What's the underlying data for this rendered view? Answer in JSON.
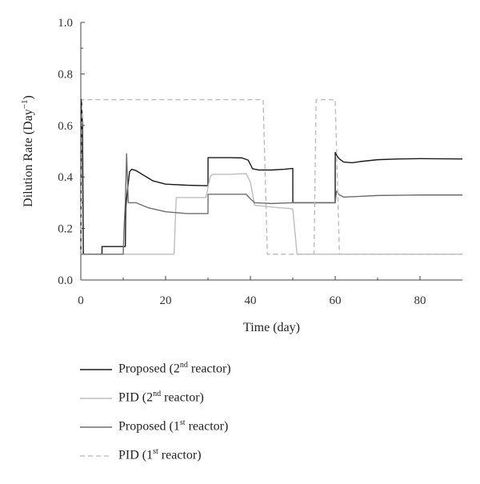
{
  "chart_data": {
    "type": "line",
    "xlabel": "Time (day)",
    "ylabel_main": "Dilution Rate (Day",
    "ylabel_sup": "−1",
    "ylabel_close": ")",
    "xlim": [
      0,
      90
    ],
    "ylim": [
      0,
      1.0
    ],
    "xticks": [
      0,
      20,
      40,
      60,
      80
    ],
    "yticks": [
      0.0,
      0.2,
      0.4,
      0.6,
      0.8,
      1.0
    ],
    "ytick_labels": [
      "0.0",
      "0.2",
      "0.4",
      "0.6",
      "0.8",
      "1.0"
    ],
    "grid": false,
    "legend_position": "below",
    "series": [
      {
        "key": "proposed_2nd",
        "label_main": "Proposed (2",
        "label_sup": "nd",
        "label_rest": " reactor)",
        "color": "#1a1a1a",
        "dash": "none",
        "width": 1.4,
        "points": [
          [
            0,
            0.1
          ],
          [
            0.15,
            0.7
          ],
          [
            0.4,
            0.6
          ],
          [
            0.6,
            0.1
          ],
          [
            5,
            0.1
          ],
          [
            5,
            0.13
          ],
          [
            10.5,
            0.13
          ],
          [
            10.6,
            0.28
          ],
          [
            11,
            0.35
          ],
          [
            11.5,
            0.42
          ],
          [
            12,
            0.43
          ],
          [
            13,
            0.425
          ],
          [
            15,
            0.405
          ],
          [
            17,
            0.385
          ],
          [
            20,
            0.372
          ],
          [
            25,
            0.368
          ],
          [
            30,
            0.366
          ],
          [
            30.01,
            0.475
          ],
          [
            35,
            0.475
          ],
          [
            38,
            0.474
          ],
          [
            39.5,
            0.465
          ],
          [
            40.5,
            0.432
          ],
          [
            42,
            0.427
          ],
          [
            45,
            0.427
          ],
          [
            48,
            0.43
          ],
          [
            50,
            0.433
          ],
          [
            50.01,
            0.3
          ],
          [
            55,
            0.3
          ],
          [
            60,
            0.3
          ],
          [
            60.01,
            0.495
          ],
          [
            60.5,
            0.48
          ],
          [
            61,
            0.47
          ],
          [
            62,
            0.458
          ],
          [
            64,
            0.455
          ],
          [
            66,
            0.46
          ],
          [
            70,
            0.467
          ],
          [
            75,
            0.47
          ],
          [
            80,
            0.471
          ],
          [
            90,
            0.47
          ]
        ]
      },
      {
        "key": "pid_2nd",
        "label_main": "PID (2",
        "label_sup": "nd",
        "label_rest": " reactor)",
        "color": "#bdbdbd",
        "dash": "none",
        "width": 1.4,
        "points": [
          [
            0,
            0.1
          ],
          [
            22,
            0.1
          ],
          [
            22.5,
            0.32
          ],
          [
            25,
            0.32
          ],
          [
            29.5,
            0.32
          ],
          [
            30.5,
            0.4
          ],
          [
            31,
            0.41
          ],
          [
            35,
            0.41
          ],
          [
            39,
            0.413
          ],
          [
            40,
            0.38
          ],
          [
            41,
            0.29
          ],
          [
            44,
            0.285
          ],
          [
            47,
            0.28
          ],
          [
            49,
            0.278
          ],
          [
            50,
            0.275
          ],
          [
            51,
            0.1
          ],
          [
            90,
            0.1
          ]
        ]
      },
      {
        "key": "proposed_1st",
        "label_main": "Proposed (1",
        "label_sup": "st",
        "label_rest": " reactor)",
        "color": "#6e6e6e",
        "dash": "none",
        "width": 1.4,
        "points": [
          [
            0,
            0.1
          ],
          [
            10,
            0.1
          ],
          [
            10.2,
            0.2
          ],
          [
            10.5,
            0.3
          ],
          [
            10.8,
            0.49
          ],
          [
            11.2,
            0.3
          ],
          [
            12,
            0.3
          ],
          [
            13,
            0.3
          ],
          [
            16,
            0.28
          ],
          [
            20,
            0.265
          ],
          [
            25,
            0.258
          ],
          [
            30,
            0.258
          ],
          [
            30.01,
            0.333
          ],
          [
            39,
            0.333
          ],
          [
            40,
            0.315
          ],
          [
            41,
            0.3
          ],
          [
            45,
            0.297
          ],
          [
            50,
            0.3
          ],
          [
            50.01,
            0.3
          ],
          [
            55,
            0.3
          ],
          [
            60,
            0.3
          ],
          [
            60.3,
            0.345
          ],
          [
            61,
            0.33
          ],
          [
            62,
            0.322
          ],
          [
            65,
            0.324
          ],
          [
            70,
            0.328
          ],
          [
            80,
            0.33
          ],
          [
            90,
            0.33
          ]
        ]
      },
      {
        "key": "pid_1st",
        "label_main": "PID (1",
        "label_sup": "st",
        "label_rest": " reactor)",
        "color": "#b8b8b8",
        "dash": "6,4",
        "width": 1.3,
        "points": [
          [
            0,
            0.1
          ],
          [
            0.3,
            0.7
          ],
          [
            43,
            0.7
          ],
          [
            44,
            0.1
          ],
          [
            55,
            0.1
          ],
          [
            55.5,
            0.7
          ],
          [
            60,
            0.7
          ],
          [
            61,
            0.1
          ],
          [
            90,
            0.1
          ]
        ]
      }
    ]
  }
}
